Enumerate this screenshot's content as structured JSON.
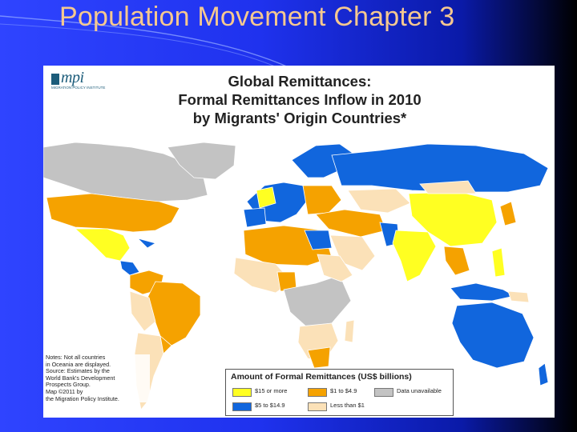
{
  "slide": {
    "title": "Population Movement Chapter 3"
  },
  "map": {
    "logo_text": "mpi",
    "logo_subtitle": "MIGRATION POLICY INSTITUTE",
    "title_lines": [
      "Global Remittances:",
      "Formal Remittances Inflow in 2010",
      "by Migrants' Origin Countries*"
    ],
    "notes": [
      "Notes: Not all countries",
      "in Oceania are displayed.",
      "Source: Estimates by the",
      "World Bank's Development",
      "Prospects Group.",
      "Map ©2011 by",
      "the Migration Policy Institute."
    ],
    "legend": {
      "title": "Amount of Formal Remittances (US$ billions)",
      "items": [
        {
          "label": "$15 or more",
          "color": "#ffff22"
        },
        {
          "label": "$1 to $4.9",
          "color": "#f5a200"
        },
        {
          "label": "Data unavailable",
          "color": "#c3c3c3"
        },
        {
          "label": "$5 to $14.9",
          "color": "#1166dd"
        },
        {
          "label": "Less than $1",
          "color": "#fbe1b8"
        }
      ]
    },
    "colors": {
      "ocean": "#ffffff",
      "border": "#ffffff",
      "frame": "#ffffff"
    }
  }
}
